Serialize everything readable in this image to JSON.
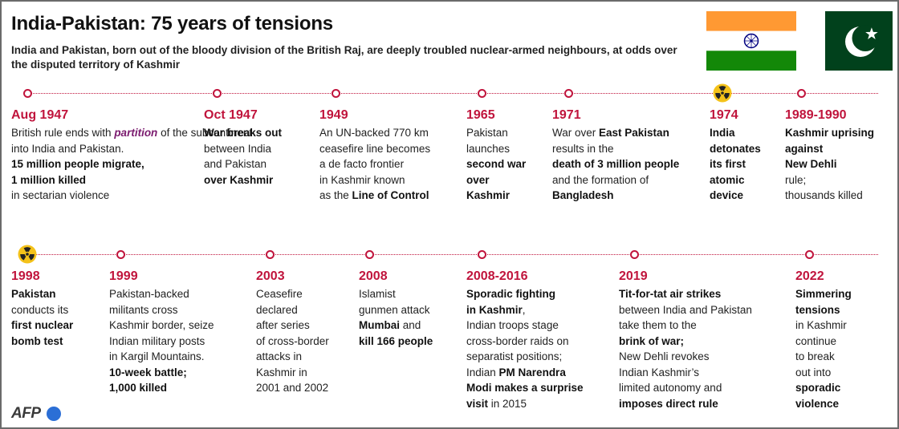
{
  "header": {
    "title": "India-Pakistan: 75 years of tensions",
    "subtitle": "India and Pakistan, born out of the bloody division of the British Raj, are deeply troubled nuclear-armed neighbours, at odds over the disputed territory of Kashmir"
  },
  "flags": [
    {
      "country": "India",
      "icon": "india-flag-icon",
      "colors": [
        "#ff9933",
        "#ffffff",
        "#138808",
        "#000080"
      ]
    },
    {
      "country": "Pakistan",
      "icon": "pakistan-flag-icon",
      "colors": [
        "#01411c",
        "#ffffff"
      ]
    }
  ],
  "colors": {
    "accent": "#c0143c",
    "emphasis": "#7a1a6e",
    "logo_dot": "#2b6fd6"
  },
  "row1": [
    {
      "year": "Aug 1947",
      "marker": "dot",
      "segments": [
        [
          "British rule ends with ",
          ""
        ],
        [
          "partition",
          "em"
        ],
        [
          " of the subcontinent",
          ""
        ],
        [
          "into India and Pakistan.",
          ""
        ],
        [
          "15 million people migrate,",
          "b"
        ],
        [
          "1 million killed",
          "b"
        ],
        [
          "in sectarian violence",
          ""
        ]
      ]
    },
    {
      "year": "Oct 1947",
      "marker": "dot",
      "segments": [
        [
          "War breaks out",
          "b"
        ],
        [
          "between India",
          ""
        ],
        [
          "and Pakistan",
          ""
        ],
        [
          "over Kashmir",
          "b"
        ]
      ]
    },
    {
      "year": "1949",
      "marker": "dot",
      "segments": [
        [
          "An UN-backed 770 km",
          ""
        ],
        [
          "ceasefire line becomes",
          ""
        ],
        [
          "a de facto frontier",
          ""
        ],
        [
          "in Kashmir known",
          ""
        ],
        [
          "as the ",
          ""
        ],
        [
          "Line of Control",
          "b"
        ]
      ]
    },
    {
      "year": "1965",
      "marker": "dot",
      "segments": [
        [
          "Pakistan",
          ""
        ],
        [
          "launches",
          ""
        ],
        [
          "second war",
          "b"
        ],
        [
          "over",
          "b"
        ],
        [
          "Kashmir",
          "b"
        ]
      ]
    },
    {
      "year": "1971",
      "marker": "dot",
      "segments": [
        [
          "War over ",
          ""
        ],
        [
          "East Pakistan",
          "b"
        ],
        [
          "results in the",
          ""
        ],
        [
          "death of 3 million people",
          "b"
        ],
        [
          "and the formation of",
          ""
        ],
        [
          "Bangladesh",
          "b"
        ]
      ]
    },
    {
      "year": "1974",
      "marker": "radiation",
      "segments": [
        [
          "India",
          "b"
        ],
        [
          "detonates",
          "b"
        ],
        [
          "its first",
          "b"
        ],
        [
          "atomic",
          "b"
        ],
        [
          "device",
          "b"
        ]
      ]
    },
    {
      "year": "1989-1990",
      "marker": "dot",
      "segments": [
        [
          "Kashmir uprising",
          "b"
        ],
        [
          "against",
          "b"
        ],
        [
          "New Dehli",
          "b"
        ],
        [
          "rule;",
          ""
        ],
        [
          "thousands killed",
          ""
        ]
      ]
    }
  ],
  "row2": [
    {
      "year": "1998",
      "marker": "radiation",
      "segments": [
        [
          "Pakistan",
          "b"
        ],
        [
          "conducts its",
          ""
        ],
        [
          "first nuclear",
          "b"
        ],
        [
          "bomb test",
          "b"
        ]
      ]
    },
    {
      "year": "1999",
      "marker": "dot",
      "segments": [
        [
          "Pakistan-backed",
          ""
        ],
        [
          "militants cross",
          ""
        ],
        [
          "Kashmir border, seize",
          ""
        ],
        [
          "Indian military posts",
          ""
        ],
        [
          "in Kargil Mountains.",
          ""
        ],
        [
          "10-week battle;",
          "b"
        ],
        [
          "1,000 killed",
          "b"
        ]
      ]
    },
    {
      "year": "2003",
      "marker": "dot",
      "segments": [
        [
          "Ceasefire",
          ""
        ],
        [
          "declared",
          ""
        ],
        [
          "after series",
          ""
        ],
        [
          "of cross-border",
          ""
        ],
        [
          "attacks in",
          ""
        ],
        [
          "Kashmir in",
          ""
        ],
        [
          "2001 and 2002",
          ""
        ]
      ]
    },
    {
      "year": "2008",
      "marker": "dot",
      "segments": [
        [
          "Islamist",
          ""
        ],
        [
          "gunmen attack",
          ""
        ],
        [
          "Mumbai",
          "b"
        ],
        [
          " and",
          ""
        ],
        [
          "kill 166 people",
          "b"
        ]
      ]
    },
    {
      "year": "2008-2016",
      "marker": "dot",
      "segments": [
        [
          "Sporadic fighting",
          "b"
        ],
        [
          "in Kashmir",
          "b"
        ],
        [
          ",",
          ""
        ],
        [
          "Indian troops stage",
          ""
        ],
        [
          "cross-border raids on",
          ""
        ],
        [
          "separatist positions;",
          ""
        ],
        [
          "Indian ",
          ""
        ],
        [
          "PM Narendra",
          "b"
        ],
        [
          "Modi makes a surprise",
          "b"
        ],
        [
          "visit",
          "b"
        ],
        [
          " in 2015",
          ""
        ]
      ]
    },
    {
      "year": "2019",
      "marker": "dot",
      "segments": [
        [
          "Tit-for-tat air strikes",
          "b"
        ],
        [
          "between India and Pakistan",
          ""
        ],
        [
          "take them to the",
          ""
        ],
        [
          "brink of war;",
          "b"
        ],
        [
          "New Dehli revokes",
          ""
        ],
        [
          "Indian Kashmir’s",
          ""
        ],
        [
          "limited autonomy and",
          ""
        ],
        [
          "imposes direct rule",
          "b"
        ]
      ]
    },
    {
      "year": "2022",
      "marker": "dot",
      "segments": [
        [
          "Simmering",
          "b"
        ],
        [
          "tensions",
          "b"
        ],
        [
          "in Kashmir",
          ""
        ],
        [
          "continue",
          ""
        ],
        [
          "to break",
          ""
        ],
        [
          "out into",
          ""
        ],
        [
          "sporadic",
          "b"
        ],
        [
          "violence",
          "b"
        ]
      ]
    }
  ],
  "footer": {
    "logo": "AFP"
  }
}
